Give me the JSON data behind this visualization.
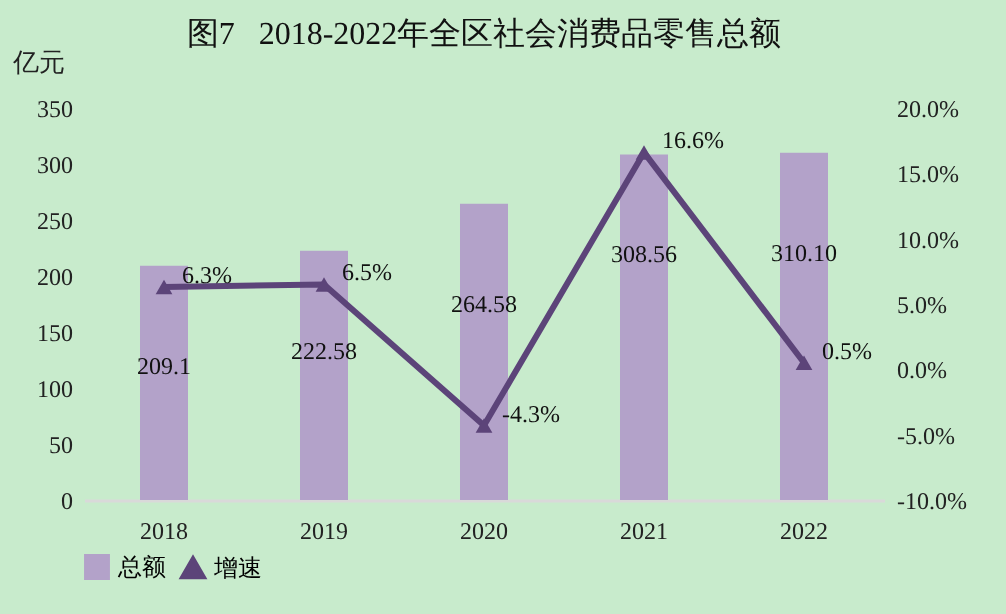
{
  "chart_data": {
    "type": "bar",
    "title": "图7   2018-2022年全区社会消费品零售总额",
    "ylabel": "亿元",
    "categories": [
      "2018",
      "2019",
      "2020",
      "2021",
      "2022"
    ],
    "series": [
      {
        "name": "总额",
        "color": "#b3a2c9",
        "values": [
          209.1,
          222.58,
          264.58,
          308.56,
          310.1
        ],
        "value_labels": [
          "209.1",
          "222.58",
          "264.58",
          "308.56",
          "310.10"
        ]
      },
      {
        "name": "增速",
        "type": "line",
        "axis": "y2",
        "color": "#5c4479",
        "values": [
          6.3,
          6.5,
          -4.3,
          16.6,
          0.5
        ],
        "value_labels": [
          "6.3%",
          "6.5%",
          "-4.3%",
          "16.6%",
          "0.5%"
        ]
      }
    ],
    "ylim": [
      0,
      350
    ],
    "yticks": [
      0,
      50,
      100,
      150,
      200,
      250,
      300,
      350
    ],
    "y2lim": [
      -10,
      20
    ],
    "y2ticks": [
      {
        "value": -10,
        "label": "-10.0%"
      },
      {
        "value": -5,
        "label": "-5.0%"
      },
      {
        "value": 0,
        "label": "0.0%"
      },
      {
        "value": 5,
        "label": "5.0%"
      },
      {
        "value": 10,
        "label": "10.0%"
      },
      {
        "value": 15,
        "label": "15.0%"
      },
      {
        "value": 20,
        "label": "20.0%"
      }
    ],
    "legend": "bottom",
    "marker": "triangle",
    "grid": false
  }
}
